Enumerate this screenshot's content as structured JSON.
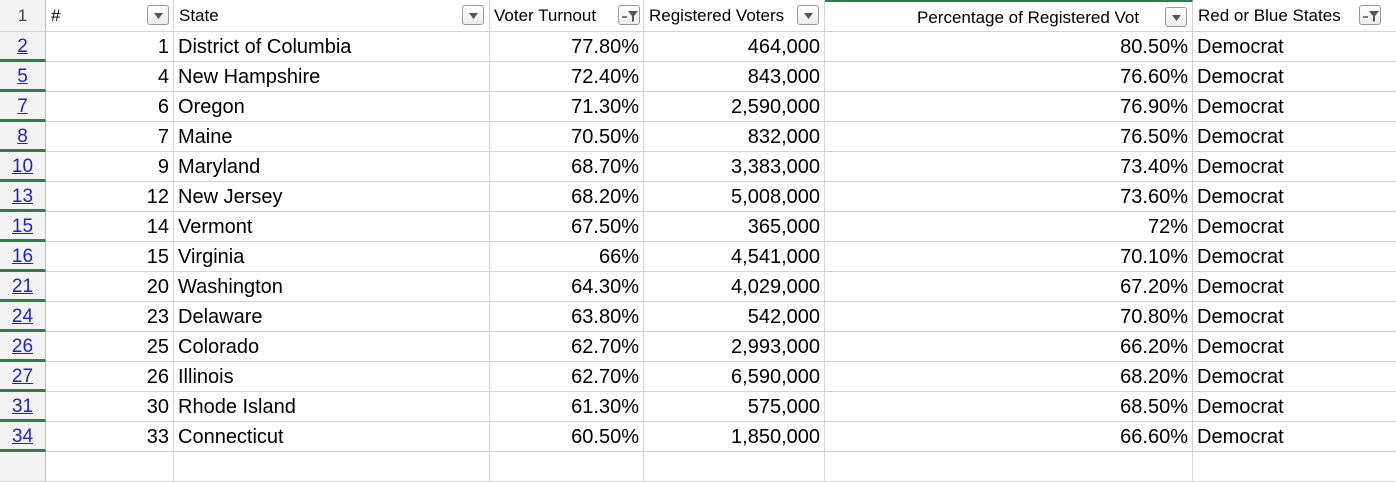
{
  "headers": {
    "rownum": "1",
    "col_num": "#",
    "col_state": "State",
    "col_turnout": "Voter Turnout",
    "col_registered": "Registered Voters",
    "col_pct": "Percentage of Registered Vot",
    "col_party": "Red or Blue States"
  },
  "filters": {
    "col_num": "dropdown-icon",
    "col_state": "dropdown-icon",
    "col_turnout": "filter-active-icon",
    "col_registered": "dropdown-icon",
    "col_pct": "dropdown-icon",
    "col_party": "filter-active-icon"
  },
  "colors": {
    "row_number_link": "#1f1fd1",
    "hidden_row_marker": "#2e7d46",
    "grid_line": "#d4d4d4"
  },
  "rows": [
    {
      "row": "2",
      "num": "1",
      "state": "District of Columbia",
      "turnout": "77.80%",
      "registered": "464,000",
      "pct": "80.50%",
      "party": "Democrat"
    },
    {
      "row": "5",
      "num": "4",
      "state": "New Hampshire",
      "turnout": "72.40%",
      "registered": "843,000",
      "pct": "76.60%",
      "party": "Democrat"
    },
    {
      "row": "7",
      "num": "6",
      "state": "Oregon",
      "turnout": "71.30%",
      "registered": "2,590,000",
      "pct": "76.90%",
      "party": "Democrat"
    },
    {
      "row": "8",
      "num": "7",
      "state": "Maine",
      "turnout": "70.50%",
      "registered": "832,000",
      "pct": "76.50%",
      "party": "Democrat"
    },
    {
      "row": "10",
      "num": "9",
      "state": "Maryland",
      "turnout": "68.70%",
      "registered": "3,383,000",
      "pct": "73.40%",
      "party": "Democrat"
    },
    {
      "row": "13",
      "num": "12",
      "state": "New Jersey",
      "turnout": "68.20%",
      "registered": "5,008,000",
      "pct": "73.60%",
      "party": "Democrat"
    },
    {
      "row": "15",
      "num": "14",
      "state": "Vermont",
      "turnout": "67.50%",
      "registered": "365,000",
      "pct": "72%",
      "party": "Democrat"
    },
    {
      "row": "16",
      "num": "15",
      "state": "Virginia",
      "turnout": "66%",
      "registered": "4,541,000",
      "pct": "70.10%",
      "party": "Democrat"
    },
    {
      "row": "21",
      "num": "20",
      "state": "Washington",
      "turnout": "64.30%",
      "registered": "4,029,000",
      "pct": "67.20%",
      "party": "Democrat"
    },
    {
      "row": "24",
      "num": "23",
      "state": "Delaware",
      "turnout": "63.80%",
      "registered": "542,000",
      "pct": "70.80%",
      "party": "Democrat"
    },
    {
      "row": "26",
      "num": "25",
      "state": "Colorado",
      "turnout": "62.70%",
      "registered": "2,993,000",
      "pct": "66.20%",
      "party": "Democrat"
    },
    {
      "row": "27",
      "num": "26",
      "state": "Illinois",
      "turnout": "62.70%",
      "registered": "6,590,000",
      "pct": "68.20%",
      "party": "Democrat"
    },
    {
      "row": "31",
      "num": "30",
      "state": "Rhode Island",
      "turnout": "61.30%",
      "registered": "575,000",
      "pct": "68.50%",
      "party": "Democrat"
    },
    {
      "row": "34",
      "num": "33",
      "state": "Connecticut",
      "turnout": "60.50%",
      "registered": "1,850,000",
      "pct": "66.60%",
      "party": "Democrat"
    }
  ]
}
